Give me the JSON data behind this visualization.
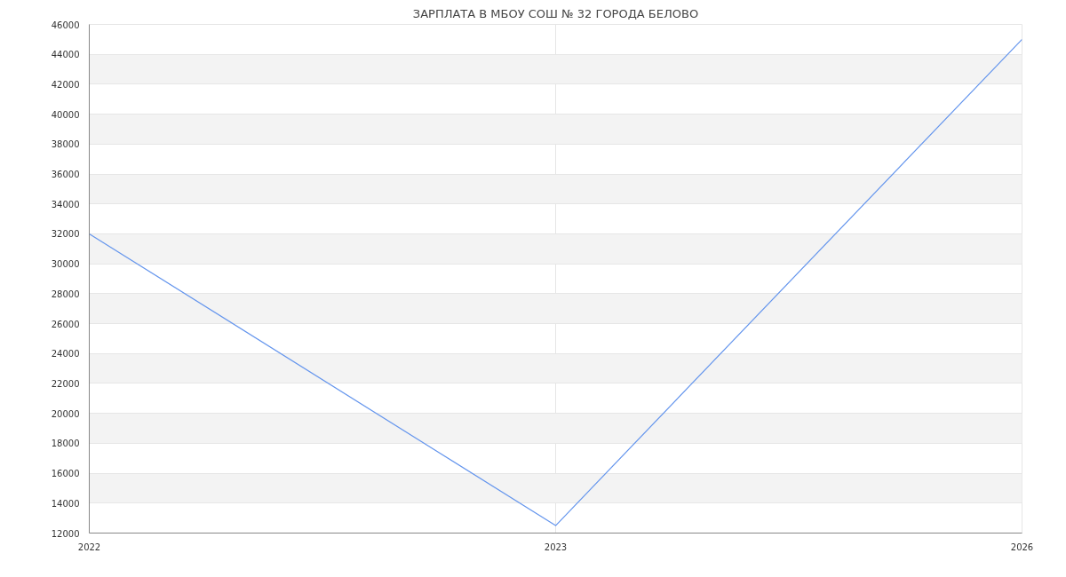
{
  "chart_data": {
    "type": "line",
    "title": "ЗАРПЛАТА В МБОУ СОШ № 32 ГОРОДА БЕЛОВО",
    "categories": [
      "2022",
      "2023",
      "2026"
    ],
    "series": [
      {
        "color": "#6495ed",
        "values": [
          32000,
          12500,
          45000
        ]
      }
    ],
    "ylim": [
      12000,
      46000
    ],
    "yticks": [
      12000,
      14000,
      16000,
      18000,
      20000,
      22000,
      24000,
      26000,
      28000,
      30000,
      32000,
      34000,
      36000,
      38000,
      40000,
      42000,
      44000,
      46000
    ],
    "grid": true,
    "line_style": "solid"
  }
}
